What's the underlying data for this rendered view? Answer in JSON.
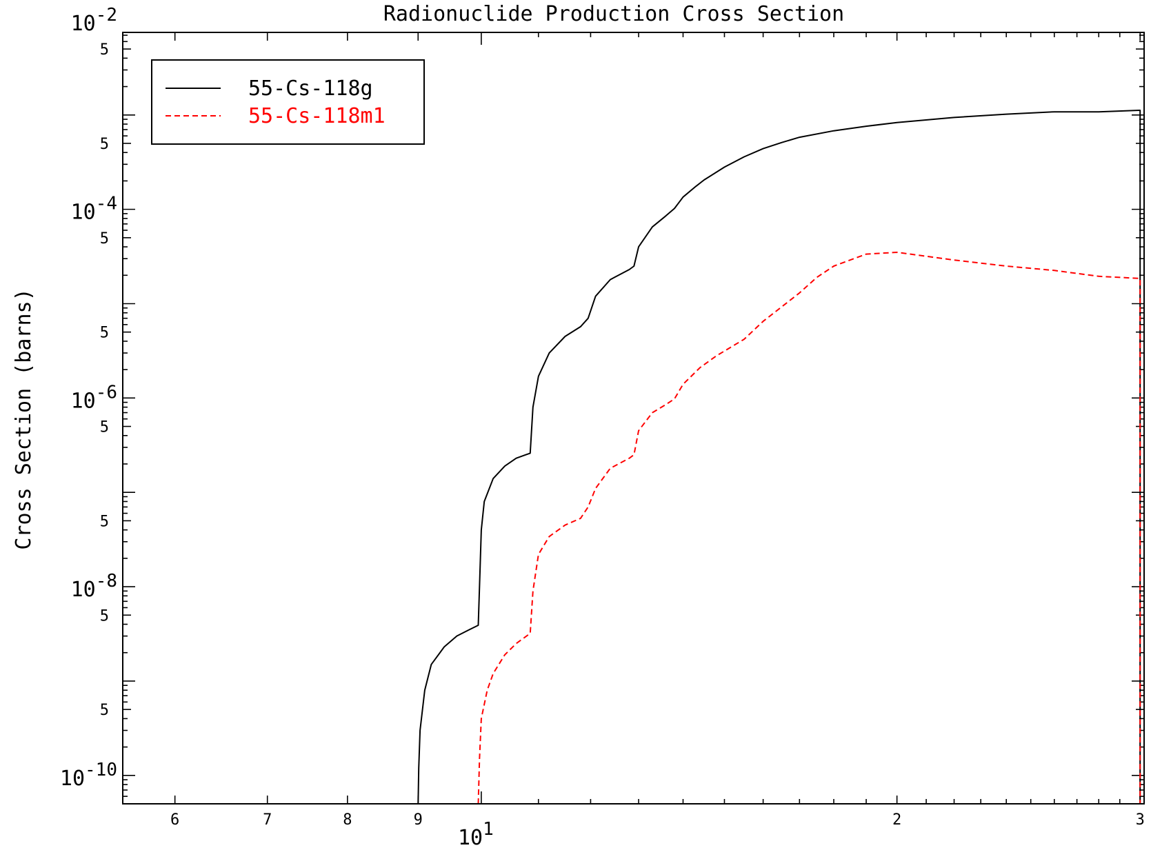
{
  "chart_data": {
    "type": "line",
    "title": "Radionuclide Production Cross Section",
    "xlabel": "",
    "ylabel": "Cross Section (barns)",
    "x_scale": "log",
    "y_scale": "log",
    "xlim": [
      5.5,
      30.2
    ],
    "ylim": [
      5e-11,
      0.0075
    ],
    "grid": false,
    "legend_position": "top-left",
    "x_major_tick": {
      "value": 10,
      "label_base": "10",
      "label_exp": "1"
    },
    "x_minor_ticks": [
      {
        "value": 6,
        "label": "6"
      },
      {
        "value": 7,
        "label": "7"
      },
      {
        "value": 8,
        "label": "8"
      },
      {
        "value": 9,
        "label": "9"
      },
      {
        "value": 20,
        "label": "2"
      },
      {
        "value": 30,
        "label": "3"
      }
    ],
    "y_major_ticks": [
      {
        "value": 0.01,
        "label_base": "10",
        "label_exp": "-2"
      },
      {
        "value": 0.0001,
        "label_base": "10",
        "label_exp": "-4"
      },
      {
        "value": 1e-06,
        "label_base": "10",
        "label_exp": "-6"
      },
      {
        "value": 1e-08,
        "label_base": "10",
        "label_exp": "-8"
      },
      {
        "value": 1e-10,
        "label_base": "10",
        "label_exp": "-10"
      }
    ],
    "y_unlabeled_decades": [
      0.001,
      1e-05,
      1e-07,
      1e-09
    ],
    "y_half_ticks": [
      {
        "value": 0.005,
        "label": "5"
      },
      {
        "value": 0.0005,
        "label": "5"
      },
      {
        "value": 5e-05,
        "label": "5"
      },
      {
        "value": 5e-06,
        "label": "5"
      },
      {
        "value": 5e-07,
        "label": "5"
      },
      {
        "value": 5e-08,
        "label": "5"
      },
      {
        "value": 5e-09,
        "label": "5"
      },
      {
        "value": 5e-10,
        "label": "5"
      }
    ],
    "series": [
      {
        "name": "55-Cs-118g",
        "color": "#000000",
        "dash": "solid",
        "points": [
          [
            9.0,
            5e-11
          ],
          [
            9.01,
            1.2e-10
          ],
          [
            9.03,
            3e-10
          ],
          [
            9.1,
            8e-10
          ],
          [
            9.2,
            1.5e-09
          ],
          [
            9.4,
            2.3e-09
          ],
          [
            9.6,
            3e-09
          ],
          [
            9.8,
            3.5e-09
          ],
          [
            9.95,
            3.9e-09
          ],
          [
            9.97,
            1e-08
          ],
          [
            10.0,
            4e-08
          ],
          [
            10.05,
            8e-08
          ],
          [
            10.2,
            1.4e-07
          ],
          [
            10.4,
            1.9e-07
          ],
          [
            10.6,
            2.3e-07
          ],
          [
            10.85,
            2.6e-07
          ],
          [
            10.9,
            8e-07
          ],
          [
            11.0,
            1.7e-06
          ],
          [
            11.2,
            3e-06
          ],
          [
            11.5,
            4.5e-06
          ],
          [
            11.8,
            5.7e-06
          ],
          [
            11.95,
            7e-06
          ],
          [
            12.1,
            1.2e-05
          ],
          [
            12.4,
            1.8e-05
          ],
          [
            12.8,
            2.3e-05
          ],
          [
            12.9,
            2.5e-05
          ],
          [
            13.0,
            4e-05
          ],
          [
            13.3,
            6.5e-05
          ],
          [
            13.6,
            8.5e-05
          ],
          [
            13.8,
            0.000102
          ],
          [
            14.0,
            0.000135
          ],
          [
            14.3,
            0.000175
          ],
          [
            14.5,
            0.000205
          ],
          [
            15.0,
            0.00028
          ],
          [
            15.5,
            0.00036
          ],
          [
            16.0,
            0.00044
          ],
          [
            16.5,
            0.00051
          ],
          [
            17.0,
            0.00058
          ],
          [
            18.0,
            0.00068
          ],
          [
            19.0,
            0.00076
          ],
          [
            20.0,
            0.00083
          ],
          [
            22.0,
            0.00094
          ],
          [
            24.0,
            0.00102
          ],
          [
            26.0,
            0.00108
          ],
          [
            28.0,
            0.00108
          ],
          [
            30.0,
            0.00112
          ],
          [
            30.0,
            5e-11
          ]
        ]
      },
      {
        "name": "55-Cs-118m1",
        "color": "#ff0000",
        "dash": "dashed",
        "points": [
          [
            9.95,
            5e-11
          ],
          [
            9.97,
            1.5e-10
          ],
          [
            10.0,
            4e-10
          ],
          [
            10.1,
            8e-10
          ],
          [
            10.2,
            1.2e-09
          ],
          [
            10.4,
            1.9e-09
          ],
          [
            10.6,
            2.5e-09
          ],
          [
            10.85,
            3.2e-09
          ],
          [
            10.9,
            9e-09
          ],
          [
            11.0,
            2.2e-08
          ],
          [
            11.2,
            3.4e-08
          ],
          [
            11.5,
            4.5e-08
          ],
          [
            11.8,
            5.3e-08
          ],
          [
            11.95,
            7e-08
          ],
          [
            12.1,
            1.1e-07
          ],
          [
            12.4,
            1.8e-07
          ],
          [
            12.8,
            2.3e-07
          ],
          [
            12.9,
            2.5e-07
          ],
          [
            13.0,
            4.5e-07
          ],
          [
            13.3,
            7e-07
          ],
          [
            13.6,
            8.5e-07
          ],
          [
            13.8,
            9.8e-07
          ],
          [
            14.0,
            1.4e-06
          ],
          [
            14.4,
            2.1e-06
          ],
          [
            14.8,
            2.8e-06
          ],
          [
            15.5,
            4.2e-06
          ],
          [
            16.0,
            6.5e-06
          ],
          [
            17.0,
            1.3e-05
          ],
          [
            17.5,
            1.9e-05
          ],
          [
            18.0,
            2.5e-05
          ],
          [
            19.0,
            3.35e-05
          ],
          [
            20.0,
            3.5e-05
          ],
          [
            22.0,
            2.9e-05
          ],
          [
            24.0,
            2.5e-05
          ],
          [
            26.0,
            2.25e-05
          ],
          [
            28.0,
            1.95e-05
          ],
          [
            30.0,
            1.85e-05
          ],
          [
            30.0,
            5e-11
          ]
        ]
      }
    ]
  }
}
